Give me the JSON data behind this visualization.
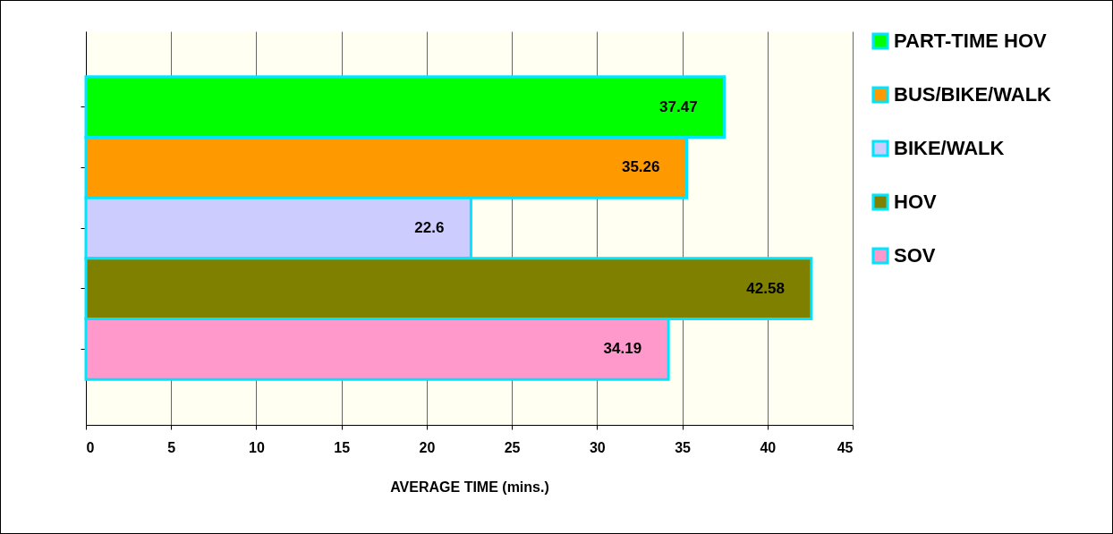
{
  "chart_data": {
    "type": "bar",
    "orientation": "horizontal",
    "categories": [
      null
    ],
    "series": [
      {
        "name": "PART-TIME HOV",
        "color": "#00ff00",
        "values": [
          37.47
        ]
      },
      {
        "name": "BUS/BIKE/WALK",
        "color": "#ff9900",
        "values": [
          35.26
        ]
      },
      {
        "name": "BIKE/WALK",
        "color": "#ccccff",
        "values": [
          22.6
        ]
      },
      {
        "name": "HOV",
        "color": "#808000",
        "values": [
          42.58
        ]
      },
      {
        "name": "SOV",
        "color": "#ff99cc",
        "values": [
          34.19
        ]
      }
    ],
    "xlabel": "AVERAGE TIME (mins.)",
    "xlim": [
      0,
      45
    ],
    "xticks": [
      0,
      5,
      10,
      15,
      20,
      25,
      30,
      35,
      40,
      45
    ],
    "grid": "x",
    "legend": "right",
    "data_labels": true
  }
}
